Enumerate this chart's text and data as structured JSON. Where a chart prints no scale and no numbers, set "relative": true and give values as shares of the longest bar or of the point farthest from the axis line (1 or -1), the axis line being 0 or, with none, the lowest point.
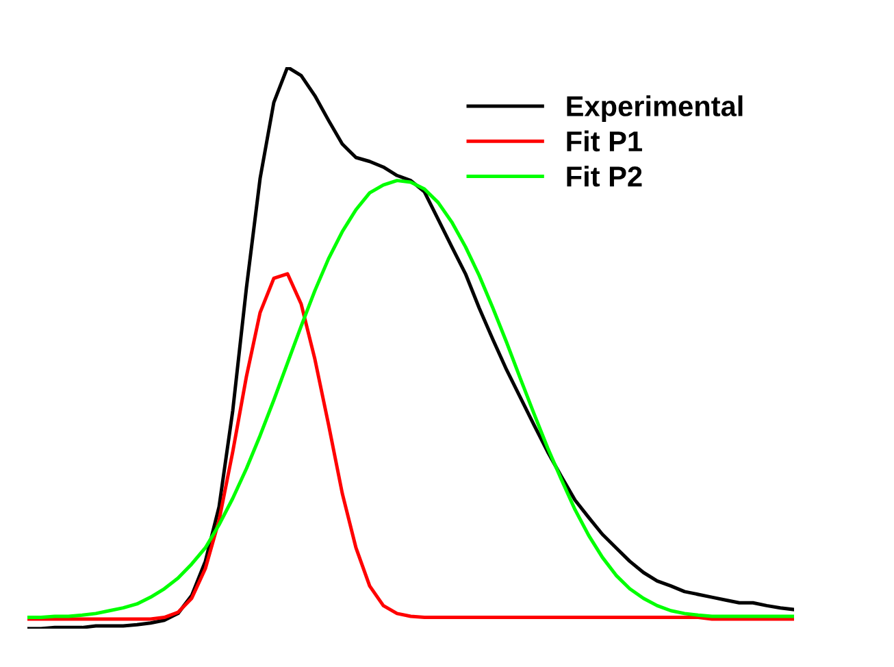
{
  "chart_data": {
    "type": "line",
    "relative": true,
    "legend": "top right",
    "marker": "none",
    "line_style": "solid",
    "categories": [
      null,
      null,
      null,
      null,
      null,
      null,
      null,
      null,
      null,
      null,
      null,
      null,
      null,
      null,
      null,
      null,
      null,
      null,
      null,
      null,
      null,
      null,
      null,
      null,
      null,
      null,
      null,
      null,
      null,
      null,
      null,
      null,
      null,
      null,
      null,
      null,
      null,
      null,
      null,
      null,
      null,
      null,
      null,
      null,
      null,
      null,
      null,
      null,
      null,
      null,
      null,
      null,
      null,
      null,
      null,
      null,
      null
    ],
    "series": [
      {
        "name": "Experimental",
        "color": "#000000",
        "values": [
          0,
          0,
          0.002,
          0.002,
          0.002,
          0.005,
          0.005,
          0.005,
          0.007,
          0.01,
          0.015,
          0.027,
          0.059,
          0.12,
          0.217,
          0.388,
          0.607,
          0.802,
          0.937,
          1.0,
          0.985,
          0.949,
          0.905,
          0.863,
          0.839,
          0.832,
          0.822,
          0.807,
          0.798,
          0.778,
          0.729,
          0.68,
          0.632,
          0.571,
          0.515,
          0.461,
          0.412,
          0.363,
          0.315,
          0.271,
          0.229,
          0.198,
          0.168,
          0.144,
          0.12,
          0.1,
          0.085,
          0.076,
          0.066,
          0.061,
          0.056,
          0.051,
          0.046,
          0.046,
          0.041,
          0.037,
          0.034
        ]
      },
      {
        "name": "Fit P1",
        "color": "#ff0000",
        "values": [
          0.017,
          0.017,
          0.017,
          0.017,
          0.017,
          0.017,
          0.017,
          0.017,
          0.017,
          0.017,
          0.02,
          0.029,
          0.054,
          0.107,
          0.193,
          0.315,
          0.449,
          0.563,
          0.624,
          0.632,
          0.578,
          0.48,
          0.363,
          0.241,
          0.144,
          0.076,
          0.041,
          0.027,
          0.022,
          0.02,
          0.02,
          0.02,
          0.02,
          0.02,
          0.02,
          0.02,
          0.02,
          0.02,
          0.02,
          0.02,
          0.02,
          0.02,
          0.02,
          0.02,
          0.02,
          0.02,
          0.02,
          0.02,
          0.02,
          0.02,
          0.017,
          0.017,
          0.017,
          0.017,
          0.017,
          0.017,
          0.017
        ]
      },
      {
        "name": "Fit P2",
        "color": "#00ff00",
        "values": [
          0.02,
          0.02,
          0.022,
          0.022,
          0.024,
          0.027,
          0.032,
          0.037,
          0.044,
          0.056,
          0.071,
          0.09,
          0.115,
          0.144,
          0.185,
          0.232,
          0.285,
          0.344,
          0.407,
          0.473,
          0.539,
          0.602,
          0.659,
          0.707,
          0.746,
          0.776,
          0.79,
          0.798,
          0.795,
          0.783,
          0.759,
          0.724,
          0.68,
          0.629,
          0.571,
          0.51,
          0.446,
          0.383,
          0.322,
          0.266,
          0.212,
          0.166,
          0.127,
          0.095,
          0.071,
          0.054,
          0.041,
          0.032,
          0.027,
          0.024,
          0.022,
          0.022,
          0.022,
          0.022,
          0.022,
          0.022,
          0.022
        ]
      }
    ]
  }
}
